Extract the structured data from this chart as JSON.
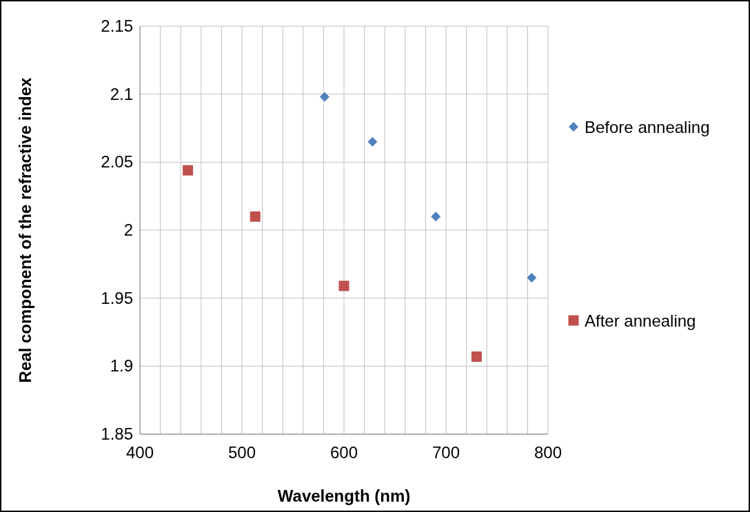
{
  "chart_data": {
    "type": "scatter",
    "xlabel": "Wavelength (nm)",
    "ylabel": "Real component of the refractive index",
    "xlim": [
      400,
      800
    ],
    "xticks": [
      400,
      {
        "value": 420,
        "label": null
      },
      {
        "value": 440,
        "label": null
      },
      {
        "value": 460,
        "label": null
      },
      {
        "value": 480,
        "label": null
      },
      500,
      {
        "value": 520,
        "label": null
      },
      {
        "value": 540,
        "label": null
      },
      {
        "value": 560,
        "label": null
      },
      {
        "value": 580,
        "label": null
      },
      600,
      {
        "value": 620,
        "label": null
      },
      {
        "value": 640,
        "label": null
      },
      {
        "value": 660,
        "label": null
      },
      {
        "value": 680,
        "label": null
      },
      700,
      {
        "value": 720,
        "label": null
      },
      {
        "value": 740,
        "label": null
      },
      {
        "value": 760,
        "label": null
      },
      {
        "value": 780,
        "label": null
      },
      800
    ],
    "ylim": [
      1.85,
      2.15
    ],
    "yticks": [
      1.85,
      1.9,
      1.95,
      2,
      2.05,
      2.1,
      2.15
    ],
    "grid": true,
    "legend": "right",
    "series": [
      {
        "name": "Before annealing",
        "color": "#4f81bd",
        "marker": "diamond",
        "x": [
          581,
          628,
          690,
          784
        ],
        "values": [
          2.098,
          2.065,
          2.01,
          1.965
        ]
      },
      {
        "name": "After annealing",
        "color": "#c0504d",
        "marker": "square",
        "x": [
          447,
          513,
          600,
          730
        ],
        "values": [
          2.044,
          2.01,
          1.959,
          1.907
        ]
      }
    ]
  }
}
